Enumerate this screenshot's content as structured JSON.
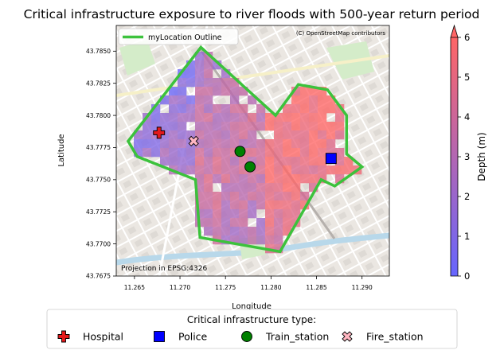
{
  "title": "Critical infrastructure exposure to river floods with 500-year return period",
  "map": {
    "xlabel": "Longitude",
    "ylabel": "Latitude",
    "xlim": [
      11.263,
      11.293
    ],
    "ylim": [
      43.7675,
      43.787
    ],
    "xticks": [
      "11.265",
      "11.270",
      "11.275",
      "11.280",
      "11.285",
      "11.290"
    ],
    "yticks": [
      "43.7675",
      "43.7700",
      "43.7725",
      "43.7750",
      "43.7775",
      "43.7800",
      "43.7825",
      "43.7850"
    ],
    "attribution": "(C) OpenStreetMap contributors",
    "projection_note": "Projection in EPSG:4326",
    "outline_legend_label": "myLocation Outline",
    "outline_color": "#3cc23c",
    "outline": [
      [
        11.2643,
        43.778
      ],
      [
        11.2723,
        43.7853
      ],
      [
        11.2805,
        43.78
      ],
      [
        11.283,
        43.7824
      ],
      [
        11.2862,
        43.782
      ],
      [
        11.2883,
        43.78
      ],
      [
        11.2883,
        43.777
      ],
      [
        11.29,
        43.776
      ],
      [
        11.287,
        43.7745
      ],
      [
        11.2855,
        43.775
      ],
      [
        11.281,
        43.7694
      ],
      [
        11.2722,
        43.7705
      ],
      [
        11.2717,
        43.775
      ],
      [
        11.2653,
        43.7768
      ]
    ]
  },
  "colorbar": {
    "label": "Depth (m)",
    "ticks": [
      "0",
      "1",
      "2",
      "3",
      "4",
      "5",
      "6"
    ],
    "min": 0,
    "max": 6,
    "color_low": "#6666ff",
    "color_high": "#ff6666",
    "extend": "max"
  },
  "legend": {
    "title": "Critical infrastructure type:",
    "items": [
      {
        "label": "Hospital",
        "icon": "red-cross-icon",
        "color": "#e41a1c"
      },
      {
        "label": "Police",
        "icon": "blue-square-icon",
        "color": "#0000ff"
      },
      {
        "label": "Train_station",
        "icon": "green-circle-icon",
        "color": "#008000"
      },
      {
        "label": "Fire_station",
        "icon": "pink-x-icon",
        "color": "#ffb6c1"
      }
    ]
  },
  "infrastructure": [
    {
      "type": "Hospital",
      "lon": 11.2677,
      "lat": 43.77865
    },
    {
      "type": "Police",
      "lon": 11.2866,
      "lat": 43.77665
    },
    {
      "type": "Train_station",
      "lon": 11.2766,
      "lat": 43.7772
    },
    {
      "type": "Train_station",
      "lon": 11.2777,
      "lat": 43.776
    },
    {
      "type": "Fire_station",
      "lon": 11.2715,
      "lat": 43.778
    }
  ]
}
